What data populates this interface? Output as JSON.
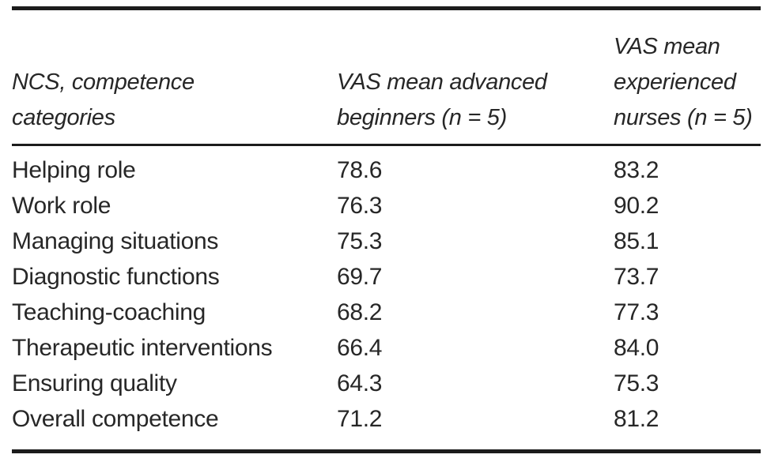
{
  "table": {
    "headers": {
      "category": "NCS, competence\ncategories",
      "advanced": "VAS mean advanced\nbeginners (n = 5)",
      "experienced": "VAS mean\nexperienced\nnurses (n = 5)"
    },
    "rows": [
      {
        "category": "Helping role",
        "advanced": "78.6",
        "experienced": "83.2"
      },
      {
        "category": "Work role",
        "advanced": "76.3",
        "experienced": "90.2"
      },
      {
        "category": "Managing situations",
        "advanced": "75.3",
        "experienced": "85.1"
      },
      {
        "category": "Diagnostic functions",
        "advanced": "69.7",
        "experienced": "73.7"
      },
      {
        "category": "Teaching-coaching",
        "advanced": "68.2",
        "experienced": "77.3"
      },
      {
        "category": "Therapeutic interventions",
        "advanced": "66.4",
        "experienced": "84.0"
      },
      {
        "category": "Ensuring quality",
        "advanced": "64.3",
        "experienced": "75.3"
      },
      {
        "category": "Overall competence",
        "advanced": "71.2",
        "experienced": "81.2"
      }
    ]
  },
  "colors": {
    "text": "#272727",
    "rule": "#1c1c1c",
    "background": "#ffffff"
  },
  "chart_data": {
    "type": "table",
    "columns": [
      "NCS, competence categories",
      "VAS mean advanced beginners (n = 5)",
      "VAS mean experienced nurses (n = 5)"
    ],
    "rows": [
      [
        "Helping role",
        78.6,
        83.2
      ],
      [
        "Work role",
        76.3,
        90.2
      ],
      [
        "Managing situations",
        75.3,
        85.1
      ],
      [
        "Diagnostic functions",
        69.7,
        73.7
      ],
      [
        "Teaching-coaching",
        68.2,
        77.3
      ],
      [
        "Therapeutic interventions",
        66.4,
        84.0
      ],
      [
        "Ensuring quality",
        64.3,
        75.3
      ],
      [
        "Overall competence",
        71.2,
        81.2
      ]
    ]
  }
}
